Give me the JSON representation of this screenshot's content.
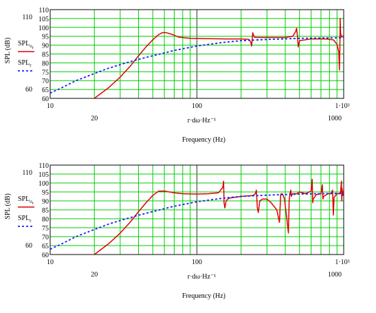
{
  "chart_data": [
    {
      "type": "line",
      "xscale": "log",
      "xlim": [
        10,
        1000
      ],
      "ylim": [
        60,
        110
      ],
      "xticks": [
        10,
        100,
        1000
      ],
      "xtick_labels": [
        "10",
        "100",
        "1·10³"
      ],
      "x_extra_labels": [
        {
          "x": 20,
          "label": "20"
        },
        {
          "x": 1000,
          "label": "1000"
        }
      ],
      "yticks": [
        60,
        65,
        70,
        75,
        80,
        85,
        90,
        95,
        100,
        105,
        110
      ],
      "ytick_labels": [
        "60",
        "65",
        "70",
        "75",
        "80",
        "85",
        "90",
        "95",
        "100",
        "105",
        "110"
      ],
      "y_extra_labels": [
        {
          "y": 60,
          "label": "60"
        },
        {
          "y": 110,
          "label": "110"
        }
      ],
      "xlabel": "r·dω·Hz⁻¹",
      "xlabel2": "Frequency (Hz)",
      "ylabel": "SPL (dB)",
      "grid": true,
      "legend_position": "left",
      "series": [
        {
          "name": "SPLo_r",
          "name_main": "SPL",
          "name_sub": "o_r",
          "color": "#e00000",
          "dash": "solid",
          "x": [
            20,
            25,
            30,
            35,
            40,
            45,
            50,
            55,
            58,
            62,
            68,
            75,
            90,
            120,
            160,
            200,
            225,
            232,
            236,
            240,
            246,
            255,
            300,
            400,
            450,
            470,
            478,
            484,
            490,
            500,
            600,
            750,
            850,
            900,
            925,
            935,
            942,
            946,
            952,
            965,
            1000,
            1050
          ],
          "y": [
            60,
            66,
            72,
            78,
            84,
            89,
            93,
            96,
            97,
            97,
            96,
            94.5,
            93.8,
            93.6,
            93.5,
            93.5,
            93.3,
            92,
            89.5,
            97,
            94.5,
            94.3,
            94.3,
            94.3,
            95,
            97.5,
            99.5,
            95,
            89,
            92.5,
            93.5,
            93.5,
            93,
            90.5,
            86.5,
            76,
            88.5,
            105,
            97,
            94.5,
            95.5,
            94.5
          ]
        },
        {
          "name": "SPLr",
          "name_main": "SPL",
          "name_sub": "r",
          "color": "#1a1aff",
          "dash": "dashed",
          "x": [
            10,
            12,
            15,
            20,
            25,
            30,
            40,
            50,
            70,
            100,
            150,
            200,
            300,
            500,
            700,
            1000,
            1050
          ],
          "y": [
            63,
            66,
            70,
            74,
            77,
            79,
            82,
            84,
            87,
            89.5,
            91.5,
            92.5,
            93.2,
            93.8,
            94,
            94.2,
            94.3
          ]
        }
      ]
    },
    {
      "type": "line",
      "xscale": "log",
      "xlim": [
        10,
        1000
      ],
      "ylim": [
        60,
        110
      ],
      "xticks": [
        10,
        100,
        1000
      ],
      "xtick_labels": [
        "10",
        "100",
        "1·10³"
      ],
      "x_extra_labels": [
        {
          "x": 20,
          "label": "20"
        },
        {
          "x": 1000,
          "label": "1000"
        }
      ],
      "yticks": [
        60,
        65,
        70,
        75,
        80,
        85,
        90,
        95,
        100,
        105,
        110
      ],
      "ytick_labels": [
        "60",
        "65",
        "70",
        "75",
        "80",
        "85",
        "90",
        "95",
        "100",
        "105",
        "110"
      ],
      "y_extra_labels": [
        {
          "y": 60,
          "label": "60"
        },
        {
          "y": 110,
          "label": "110"
        }
      ],
      "xlabel": "r·dω·Hz⁻¹",
      "xlabel2": "Frequency (Hz)",
      "ylabel": "SPL (dB)",
      "grid": true,
      "legend_position": "left",
      "series": [
        {
          "name": "SPLo_r",
          "name_main": "SPL",
          "name_sub": "o_r",
          "color": "#e00000",
          "dash": "solid",
          "x": [
            20,
            25,
            30,
            35,
            40,
            45,
            50,
            55,
            60,
            70,
            80,
            100,
            120,
            140,
            150,
            152,
            153,
            155,
            158,
            165,
            200,
            240,
            250,
            254,
            258,
            262,
            268,
            280,
            300,
            320,
            350,
            365,
            372,
            376,
            380,
            385,
            395,
            410,
            420,
            425,
            430,
            436,
            440,
            448,
            460,
            480,
            500,
            550,
            600,
            610,
            615,
            620,
            650,
            700,
            715,
            722,
            730,
            780,
            820,
            840,
            850,
            860,
            900,
            950,
            965,
            970,
            975,
            985,
            1000,
            1050
          ],
          "y": [
            60,
            66,
            72,
            78,
            84,
            89,
            93,
            95.5,
            95.5,
            94.5,
            94,
            93.8,
            94,
            94.5,
            97.5,
            101,
            89,
            86,
            90,
            91.5,
            92.5,
            93,
            94,
            96,
            86,
            83.5,
            90,
            91,
            91,
            89,
            85,
            78,
            93.5,
            94,
            94,
            93.5,
            91,
            80,
            72,
            90,
            94,
            96,
            92.5,
            94,
            94,
            94,
            95,
            94,
            95.5,
            102,
            89,
            91,
            93.5,
            94,
            99,
            91,
            92.5,
            94,
            94,
            96,
            82,
            92,
            94,
            94,
            101,
            90,
            97,
            93,
            96,
            93.5
          ]
        },
        {
          "name": "SPLr",
          "name_main": "SPL",
          "name_sub": "r",
          "color": "#1a1aff",
          "dash": "dashed",
          "x": [
            10,
            12,
            15,
            20,
            25,
            30,
            40,
            50,
            70,
            100,
            150,
            200,
            300,
            500,
            700,
            1000,
            1050
          ],
          "y": [
            63,
            66,
            70,
            74,
            77,
            79,
            82,
            84,
            87,
            89.5,
            91.5,
            92.5,
            93.2,
            93.8,
            94,
            94.2,
            94.3
          ]
        }
      ]
    }
  ]
}
